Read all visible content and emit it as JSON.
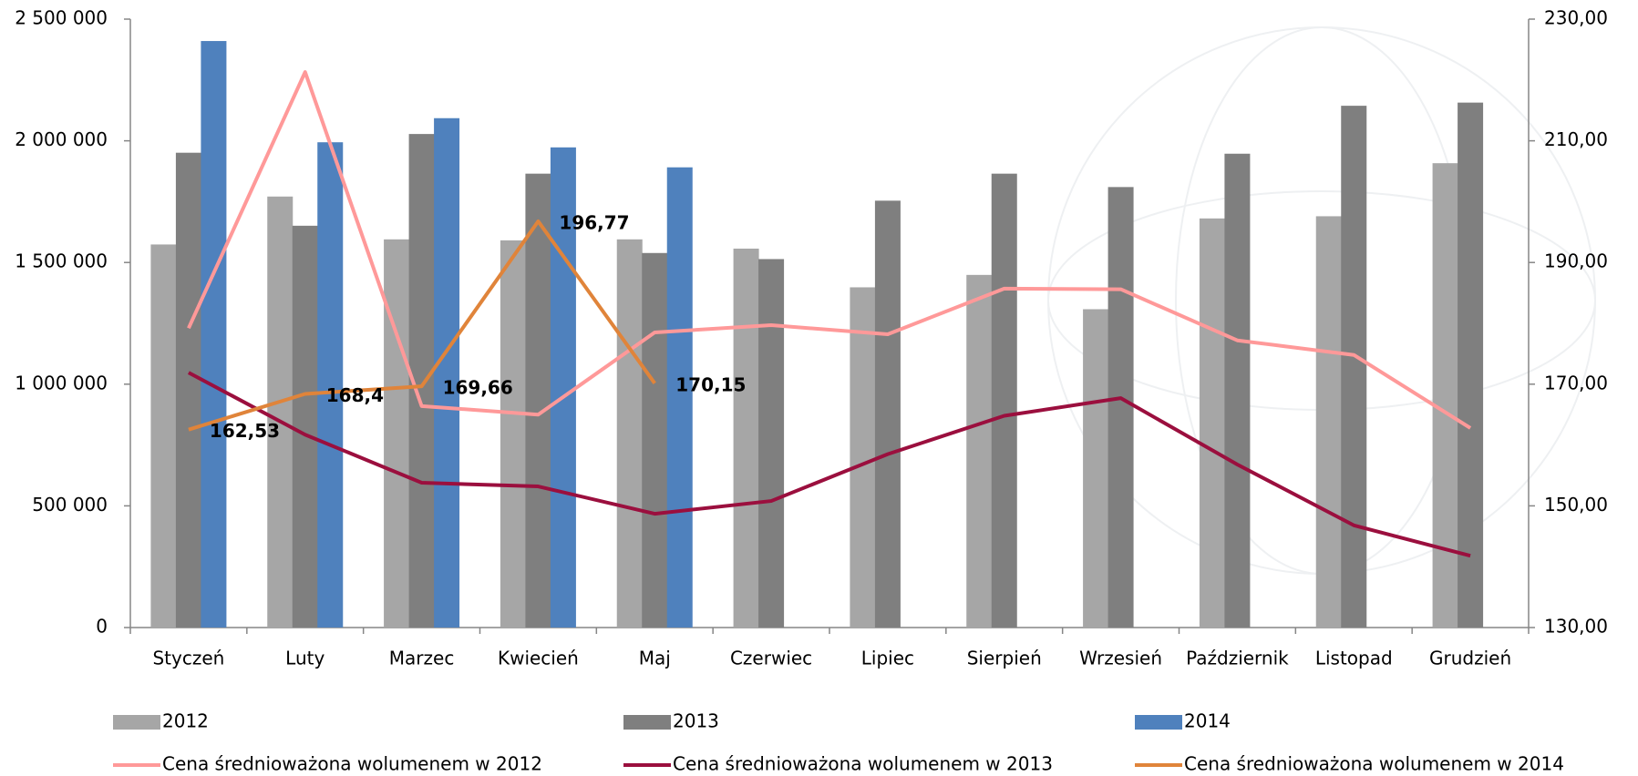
{
  "chart_data": {
    "type": "bar",
    "categories": [
      "Styczeń",
      "Luty",
      "Marzec",
      "Kwiecień",
      "Maj",
      "Czerwiec",
      "Lipiec",
      "Sierpień",
      "Wrzesień",
      "Październik",
      "Listopad",
      "Grudzień"
    ],
    "ylim": [
      0,
      2500000
    ],
    "yticks": [
      0,
      {
        "value": 500000,
        "label": "500 000"
      },
      {
        "value": 1000000,
        "label": "1 000 000"
      },
      {
        "value": 1500000,
        "label": "1 500 000"
      },
      {
        "value": 2000000,
        "label": "2 000 000"
      },
      {
        "value": 2500000,
        "label": "2 500 000"
      }
    ],
    "y2lim": [
      130,
      230
    ],
    "y2ticks": [
      {
        "value": 130,
        "label": "130,00"
      },
      {
        "value": 150,
        "label": "150,00"
      },
      {
        "value": 170,
        "label": "170,00"
      },
      {
        "value": 190,
        "label": "190,00"
      },
      {
        "value": 210,
        "label": "210,00"
      },
      {
        "value": 230,
        "label": "230,00"
      }
    ],
    "series": [
      {
        "name": "2012",
        "type": "bar",
        "color": "#a6a6a6",
        "values": [
          1574000,
          1771000,
          1595000,
          1591000,
          1595000,
          1557000,
          1398000,
          1449000,
          1308000,
          1681000,
          1690000,
          1908000
        ]
      },
      {
        "name": "2013",
        "type": "bar",
        "color": "#7f7f7f",
        "values": [
          1951000,
          1651000,
          2028000,
          1865000,
          1539000,
          1514000,
          1754000,
          1865000,
          1810000,
          1947000,
          2144000,
          2157000
        ]
      },
      {
        "name": "2014",
        "type": "bar",
        "color": "#4f81bd",
        "values": [
          2410000,
          1994000,
          2093000,
          1973000,
          1891000,
          null,
          null,
          null,
          null,
          null,
          null,
          null
        ]
      },
      {
        "name": "Cena średnioważona wolumenem w 2012",
        "type": "line",
        "axis": "y2",
        "color": "#ff9999",
        "values": [
          179.2,
          221.3,
          166.4,
          165.0,
          178.5,
          179.7,
          178.2,
          185.7,
          185.6,
          177.2,
          174.8,
          162.8
        ]
      },
      {
        "name": "Cena średnioważona wolumenem w 2013",
        "type": "line",
        "axis": "y2",
        "color": "#9b0f3e",
        "values": [
          171.9,
          161.7,
          153.8,
          153.2,
          148.7,
          150.8,
          158.5,
          164.8,
          167.7,
          156.8,
          146.8,
          141.8
        ]
      },
      {
        "name": "Cena średnioważona wolumenem w 2014",
        "type": "line",
        "axis": "y2",
        "color": "#e0843a",
        "values": [
          162.53,
          168.4,
          169.66,
          196.77,
          170.15,
          null,
          null,
          null,
          null,
          null,
          null,
          null
        ],
        "value_labels": [
          "162,53",
          "168,4",
          "169,66",
          "196,77",
          "170,15",
          null,
          null,
          null,
          null,
          null,
          null,
          null
        ]
      }
    ]
  }
}
